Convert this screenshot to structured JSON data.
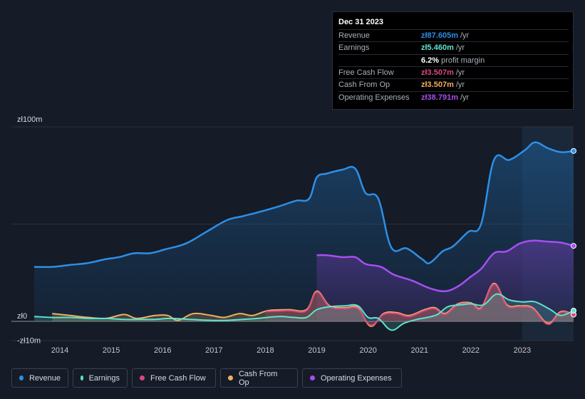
{
  "tooltip": {
    "date": "Dec 31 2023",
    "rows": [
      {
        "label": "Revenue",
        "value": "zł87.605m",
        "unit": "/yr",
        "color": "#2d8fe6"
      },
      {
        "label": "Earnings",
        "value": "zł5.460m",
        "unit": "/yr",
        "color": "#5fe3cd"
      },
      {
        "label": "",
        "value": "6.2%",
        "unit": "profit margin",
        "color": "#ffffff"
      },
      {
        "label": "Free Cash Flow",
        "value": "zł3.507m",
        "unit": "/yr",
        "color": "#d9487f"
      },
      {
        "label": "Cash From Op",
        "value": "zł3.507m",
        "unit": "/yr",
        "color": "#f0b060"
      },
      {
        "label": "Operating Expenses",
        "value": "zł38.791m",
        "unit": "/yr",
        "color": "#a64ff0"
      }
    ]
  },
  "legend": [
    {
      "label": "Revenue",
      "color": "#2d8fe6"
    },
    {
      "label": "Earnings",
      "color": "#5fe3cd"
    },
    {
      "label": "Free Cash Flow",
      "color": "#d9487f"
    },
    {
      "label": "Cash From Op",
      "color": "#f0b060"
    },
    {
      "label": "Operating Expenses",
      "color": "#a64ff0"
    }
  ],
  "chart_data": {
    "type": "area",
    "title": "",
    "xlabel": "",
    "ylabel": "",
    "ylim": [
      -10,
      100
    ],
    "xlim": [
      2013.5,
      2024.0
    ],
    "y_tick_labels": [
      {
        "value": 100,
        "label": "zł100m"
      },
      {
        "value": 0,
        "label": "zł0"
      },
      {
        "value": -10,
        "label": "-zł10m"
      }
    ],
    "x_tick_labels": [
      {
        "value": 2014,
        "label": "2014"
      },
      {
        "value": 2015,
        "label": "2015"
      },
      {
        "value": 2016,
        "label": "2016"
      },
      {
        "value": 2017,
        "label": "2017"
      },
      {
        "value": 2018,
        "label": "2018"
      },
      {
        "value": 2019,
        "label": "2019"
      },
      {
        "value": 2020,
        "label": "2020"
      },
      {
        "value": 2021,
        "label": "2021"
      },
      {
        "value": 2022,
        "label": "2022"
      },
      {
        "value": 2023,
        "label": "2023"
      }
    ],
    "highlight_range": [
      2023.0,
      2024.0
    ],
    "series": [
      {
        "name": "Revenue",
        "color": "#2d8fe6",
        "fill": true,
        "points": [
          [
            2013.5,
            28
          ],
          [
            2013.85,
            28
          ],
          [
            2014.2,
            29
          ],
          [
            2014.55,
            30
          ],
          [
            2014.9,
            32
          ],
          [
            2015.15,
            33
          ],
          [
            2015.45,
            35
          ],
          [
            2015.75,
            35
          ],
          [
            2016.05,
            37
          ],
          [
            2016.45,
            40
          ],
          [
            2016.85,
            46
          ],
          [
            2017.25,
            52
          ],
          [
            2017.55,
            54
          ],
          [
            2017.85,
            56
          ],
          [
            2018.25,
            59
          ],
          [
            2018.6,
            62
          ],
          [
            2018.85,
            63
          ],
          [
            2019.0,
            74
          ],
          [
            2019.2,
            76
          ],
          [
            2019.5,
            78
          ],
          [
            2019.75,
            78.5
          ],
          [
            2019.95,
            66
          ],
          [
            2020.2,
            63
          ],
          [
            2020.45,
            38
          ],
          [
            2020.75,
            37.5
          ],
          [
            2021.05,
            32
          ],
          [
            2021.2,
            30
          ],
          [
            2021.45,
            36
          ],
          [
            2021.65,
            38.5
          ],
          [
            2021.95,
            46
          ],
          [
            2022.2,
            50
          ],
          [
            2022.45,
            83
          ],
          [
            2022.75,
            83
          ],
          [
            2023.05,
            88
          ],
          [
            2023.25,
            92
          ],
          [
            2023.5,
            89
          ],
          [
            2023.75,
            87
          ],
          [
            2024.0,
            87.6
          ]
        ]
      },
      {
        "name": "Operating Expenses",
        "color": "#a64ff0",
        "fill": true,
        "points": [
          [
            2019.0,
            34
          ],
          [
            2019.2,
            34
          ],
          [
            2019.5,
            33
          ],
          [
            2019.75,
            33
          ],
          [
            2019.95,
            29.5
          ],
          [
            2020.25,
            28
          ],
          [
            2020.5,
            24
          ],
          [
            2020.85,
            21
          ],
          [
            2021.2,
            17
          ],
          [
            2021.5,
            15.5
          ],
          [
            2021.75,
            18
          ],
          [
            2022.0,
            23
          ],
          [
            2022.2,
            27
          ],
          [
            2022.45,
            35
          ],
          [
            2022.7,
            36
          ],
          [
            2022.95,
            40
          ],
          [
            2023.2,
            41.5
          ],
          [
            2023.5,
            41
          ],
          [
            2023.75,
            40.5
          ],
          [
            2024.0,
            38.8
          ]
        ]
      },
      {
        "name": "Cash From Op",
        "color": "#f0b060",
        "fill": true,
        "points": [
          [
            2013.85,
            4
          ],
          [
            2014.2,
            3
          ],
          [
            2014.55,
            2
          ],
          [
            2014.9,
            1.5
          ],
          [
            2015.25,
            3.5
          ],
          [
            2015.5,
            1.5
          ],
          [
            2015.85,
            3
          ],
          [
            2016.1,
            3
          ],
          [
            2016.3,
            0.5
          ],
          [
            2016.6,
            4
          ],
          [
            2016.95,
            3
          ],
          [
            2017.2,
            2
          ],
          [
            2017.5,
            4
          ],
          [
            2017.75,
            3
          ],
          [
            2018.05,
            5.5
          ],
          [
            2018.45,
            6
          ],
          [
            2018.8,
            6
          ],
          [
            2019.0,
            15.5
          ],
          [
            2019.25,
            8
          ],
          [
            2019.55,
            7
          ],
          [
            2019.8,
            7
          ],
          [
            2020.05,
            -2.5
          ],
          [
            2020.3,
            4
          ],
          [
            2020.55,
            4.5
          ],
          [
            2020.8,
            3
          ],
          [
            2021.1,
            6
          ],
          [
            2021.3,
            7
          ],
          [
            2021.5,
            4
          ],
          [
            2021.75,
            9
          ],
          [
            2022.0,
            9.5
          ],
          [
            2022.2,
            7
          ],
          [
            2022.45,
            19.5
          ],
          [
            2022.7,
            8.5
          ],
          [
            2022.95,
            8
          ],
          [
            2023.2,
            7
          ],
          [
            2023.5,
            -1
          ],
          [
            2023.75,
            5
          ],
          [
            2024.0,
            3.5
          ]
        ]
      },
      {
        "name": "Free Cash Flow",
        "color": "#d9487f",
        "fill": true,
        "points": [
          [
            2018.0,
            5
          ],
          [
            2018.45,
            5.5
          ],
          [
            2018.8,
            5.5
          ],
          [
            2019.0,
            15
          ],
          [
            2019.25,
            7.5
          ],
          [
            2019.55,
            6.5
          ],
          [
            2019.8,
            6.5
          ],
          [
            2020.05,
            -2
          ],
          [
            2020.3,
            3.5
          ],
          [
            2020.55,
            4
          ],
          [
            2020.8,
            2.5
          ],
          [
            2021.1,
            5.5
          ],
          [
            2021.3,
            6.5
          ],
          [
            2021.5,
            3.5
          ],
          [
            2021.75,
            8.5
          ],
          [
            2022.0,
            9
          ],
          [
            2022.2,
            6.5
          ],
          [
            2022.45,
            19
          ],
          [
            2022.7,
            8
          ],
          [
            2022.95,
            7.5
          ],
          [
            2023.2,
            6.5
          ],
          [
            2023.5,
            -1.5
          ],
          [
            2023.75,
            4.5
          ],
          [
            2024.0,
            3.5
          ]
        ]
      },
      {
        "name": "Earnings",
        "color": "#5fe3cd",
        "fill": true,
        "points": [
          [
            2013.5,
            2.5
          ],
          [
            2013.85,
            2
          ],
          [
            2014.2,
            2
          ],
          [
            2014.55,
            1.5
          ],
          [
            2014.9,
            1.5
          ],
          [
            2015.25,
            1
          ],
          [
            2015.55,
            1
          ],
          [
            2015.85,
            1
          ],
          [
            2016.15,
            1.5
          ],
          [
            2016.55,
            1
          ],
          [
            2016.95,
            0.5
          ],
          [
            2017.25,
            0.5
          ],
          [
            2017.55,
            1
          ],
          [
            2017.85,
            1.5
          ],
          [
            2018.25,
            2.5
          ],
          [
            2018.55,
            2
          ],
          [
            2018.8,
            2
          ],
          [
            2019.0,
            6
          ],
          [
            2019.25,
            7.5
          ],
          [
            2019.55,
            8
          ],
          [
            2019.8,
            8
          ],
          [
            2020.0,
            2
          ],
          [
            2020.2,
            1.5
          ],
          [
            2020.45,
            -4.5
          ],
          [
            2020.7,
            -1
          ],
          [
            2020.95,
            1
          ],
          [
            2021.15,
            2
          ],
          [
            2021.35,
            3.5
          ],
          [
            2021.55,
            7.5
          ],
          [
            2021.8,
            8.5
          ],
          [
            2022.0,
            9
          ],
          [
            2022.25,
            8.5
          ],
          [
            2022.5,
            14
          ],
          [
            2022.75,
            11
          ],
          [
            2023.0,
            10
          ],
          [
            2023.25,
            10
          ],
          [
            2023.55,
            6
          ],
          [
            2023.75,
            3
          ],
          [
            2024.0,
            5.5
          ]
        ]
      }
    ]
  }
}
